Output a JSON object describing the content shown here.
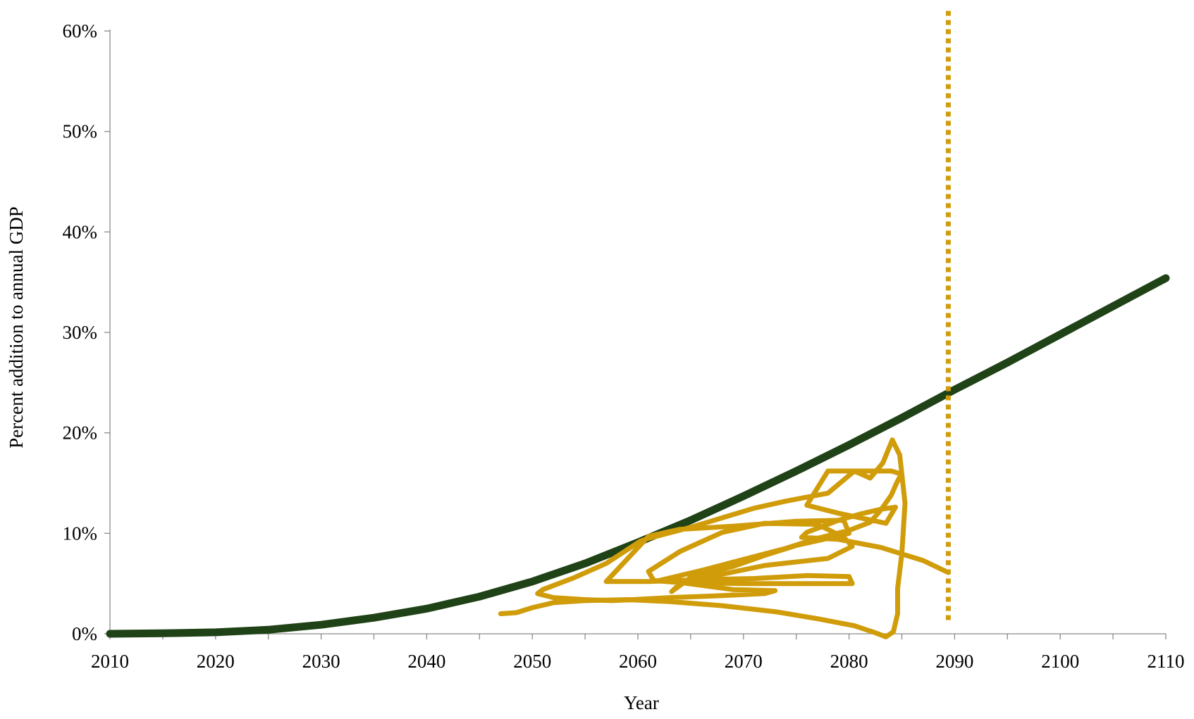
{
  "chart_data": {
    "type": "line",
    "xlabel": "Year",
    "ylabel": "Percent addition to annual GDP",
    "xlim": [
      2010,
      2110
    ],
    "ylim": [
      0,
      60
    ],
    "x_ticks": [
      2010,
      2020,
      2030,
      2040,
      2050,
      2060,
      2070,
      2080,
      2090,
      2100,
      2110
    ],
    "x_tick_labels": [
      "2010",
      "2020",
      "2030",
      "2040",
      "2050",
      "2060",
      "2070",
      "2080",
      "2090",
      "2100",
      "2110"
    ],
    "y_ticks": [
      0,
      10,
      20,
      30,
      40,
      50,
      60
    ],
    "y_tick_labels": [
      "0%",
      "10%",
      "20%",
      "30%",
      "40%",
      "50%",
      "60%"
    ],
    "grid": false,
    "legend": "none",
    "series": [
      {
        "color": "#1f4216",
        "style": "solid",
        "x": [
          2010,
          2015,
          2020,
          2025,
          2030,
          2035,
          2040,
          2045,
          2050,
          2055,
          2060,
          2065,
          2070,
          2075,
          2080,
          2085,
          2090,
          2095,
          2100,
          2105,
          2110
        ],
        "y": [
          0,
          0.05,
          0.15,
          0.4,
          0.9,
          1.6,
          2.5,
          3.7,
          5.2,
          7.0,
          9.1,
          11.3,
          13.7,
          16.2,
          18.8,
          21.5,
          24.3,
          27.0,
          29.8,
          32.6,
          35.4
        ]
      },
      {
        "color": "#d09c0a",
        "style": "solid",
        "x": [
          2047.0,
          2048.5,
          2050.0,
          2052.0,
          2055.0,
          2059.0,
          2063.0,
          2068.0,
          2073.0,
          2077.0,
          2080.5,
          2082.5,
          2083.5,
          2084.2,
          2084.6,
          2084.6,
          2085.0,
          2085.3,
          2084.8,
          2084.1,
          2083.2,
          2082.0,
          2080.5,
          2078.0,
          2074.0,
          2071.0,
          2065.0,
          2061.0,
          2060.2,
          2057.0,
          2054.0,
          2051.0,
          2050.5,
          2052.0,
          2055.0,
          2057.5,
          2059.5,
          2063.0,
          2068.0,
          2072.0,
          2073.0,
          2069.0,
          2064.0,
          2061.5,
          2061.0,
          2064.0,
          2068.0,
          2072.0,
          2077.0,
          2079.5,
          2080.3,
          2078.0,
          2072.0,
          2066.0,
          2064.0,
          2063.2,
          2065.0,
          2069.0,
          2072.0,
          2075.0,
          2078.0,
          2080.0,
          2079.5,
          2075.0,
          2069.0,
          2064.0,
          2061.0,
          2057.0,
          2061.0,
          2066.0,
          2071.0,
          2076.0,
          2080.0,
          2080.3,
          2076.0,
          2070.0,
          2064.0,
          2062.0,
          2066.0,
          2070.0,
          2074.0,
          2077.0,
          2080.0,
          2082.0,
          2083.0,
          2084.0,
          2084.5,
          2084.8,
          2085.0,
          2084.0,
          2081.0,
          2078.0,
          2076.0,
          2079.0,
          2083.5,
          2084.4,
          2083.0,
          2081.0,
          2079.0,
          2077.5,
          2076.0,
          2075.5,
          2079.0,
          2083.0,
          2087.0,
          2089.4
        ],
        "y": [
          2.0,
          2.1,
          2.6,
          3.1,
          3.3,
          3.4,
          3.2,
          2.8,
          2.2,
          1.5,
          0.8,
          0.1,
          -0.3,
          0.2,
          2.0,
          4.5,
          8.0,
          13.0,
          17.8,
          19.3,
          17.0,
          15.5,
          16.2,
          14.0,
          13.2,
          12.5,
          10.6,
          9.5,
          9.2,
          7.0,
          5.6,
          4.4,
          4.0,
          3.6,
          3.4,
          3.3,
          3.4,
          3.6,
          3.8,
          4.0,
          4.3,
          4.4,
          5.1,
          5.3,
          6.2,
          8.2,
          10.1,
          11.0,
          10.9,
          9.6,
          8.7,
          7.5,
          6.8,
          5.5,
          5.0,
          4.2,
          5.6,
          6.7,
          7.8,
          8.8,
          9.5,
          10.0,
          11.3,
          11.2,
          10.7,
          10.4,
          9.7,
          5.2,
          5.2,
          5.4,
          5.5,
          5.8,
          5.7,
          5.0,
          5.0,
          5.0,
          5.1,
          5.3,
          6.3,
          7.4,
          8.5,
          9.5,
          10.3,
          11.1,
          12.3,
          13.8,
          15.0,
          15.6,
          15.9,
          16.2,
          16.2,
          16.2,
          12.8,
          12.0,
          11.0,
          12.6,
          12.4,
          11.9,
          11.3,
          10.7,
          10.1,
          9.6,
          9.4,
          8.6,
          7.3,
          6.1
        ]
      },
      {
        "color": "#d09c0a",
        "style": "dotted",
        "x": [
          2089.4,
          2089.4
        ],
        "y": [
          62,
          1
        ]
      }
    ]
  }
}
